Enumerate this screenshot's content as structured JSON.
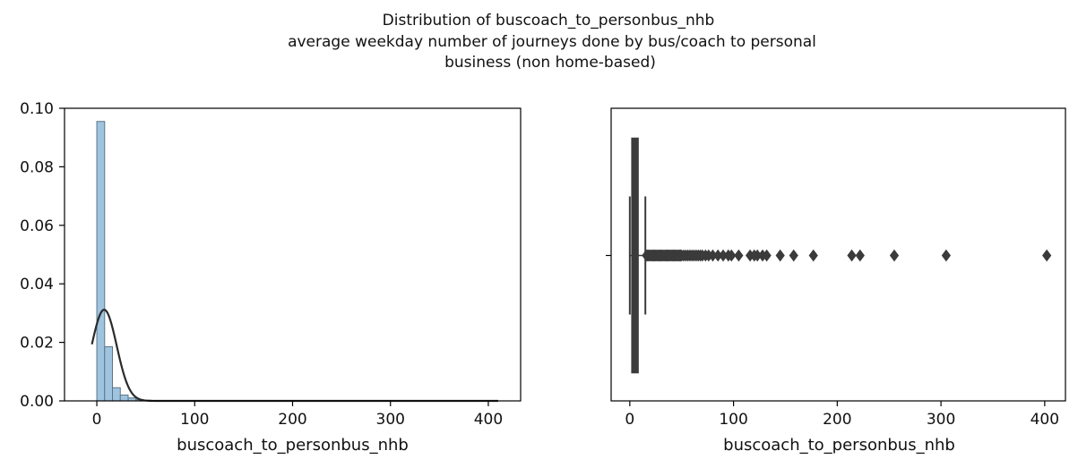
{
  "title_lines": [
    "Distribution of buscoach_to_personbus_nhb",
    "average weekday number of journeys done by bus/coach to personal",
    "business (non home-based)"
  ],
  "chart_data": [
    {
      "type": "histogram",
      "xlabel": "buscoach_to_personbus_nhb",
      "ylabel": "",
      "xlim": [
        -33,
        433
      ],
      "ylim": [
        0,
        0.1
      ],
      "xticks": [
        0,
        100,
        200,
        300,
        400
      ],
      "yticks": [
        0.0,
        0.02,
        0.04,
        0.06,
        0.08,
        0.1
      ],
      "ytick_labels": [
        "0.00",
        "0.02",
        "0.04",
        "0.06",
        "0.08",
        "0.10"
      ],
      "bins": [
        {
          "x0": 0,
          "x1": 8,
          "density": 0.0955
        },
        {
          "x0": 8,
          "x1": 16,
          "density": 0.0185
        },
        {
          "x0": 16,
          "x1": 24,
          "density": 0.0045
        },
        {
          "x0": 24,
          "x1": 32,
          "density": 0.002
        },
        {
          "x0": 32,
          "x1": 40,
          "density": 0.001
        },
        {
          "x0": 40,
          "x1": 48,
          "density": 0.0004
        },
        {
          "x0": 48,
          "x1": 56,
          "density": 0.0002
        }
      ],
      "bar_color": "#9ec4e0",
      "kde_fit": {
        "mean": 7.5,
        "std": 12.8,
        "x_range": [
          -5,
          410
        ],
        "color": "#2b2b2b"
      }
    },
    {
      "type": "box",
      "xlabel": "buscoach_to_personbus_nhb",
      "xlim": [
        -18,
        420
      ],
      "xticks": [
        0,
        100,
        200,
        300,
        400
      ],
      "q1": 2,
      "q3": 8,
      "median": 5,
      "whisker_low": 0,
      "whisker_high": 15,
      "outliers": [
        16,
        17,
        18,
        19,
        20,
        21,
        22,
        23,
        24,
        25,
        26,
        27,
        28,
        29,
        30,
        31,
        32,
        33,
        34,
        35,
        36,
        37,
        38,
        39,
        40,
        41,
        42,
        43,
        44,
        45,
        46,
        47,
        48,
        49,
        50,
        52,
        54,
        56,
        58,
        60,
        62,
        64,
        66,
        68,
        70,
        73,
        76,
        80,
        85,
        90,
        95,
        98,
        105,
        116,
        120,
        123,
        128,
        132,
        145,
        158,
        177,
        214,
        222,
        255,
        305,
        402
      ],
      "box_color": "#3b3b3b"
    }
  ]
}
